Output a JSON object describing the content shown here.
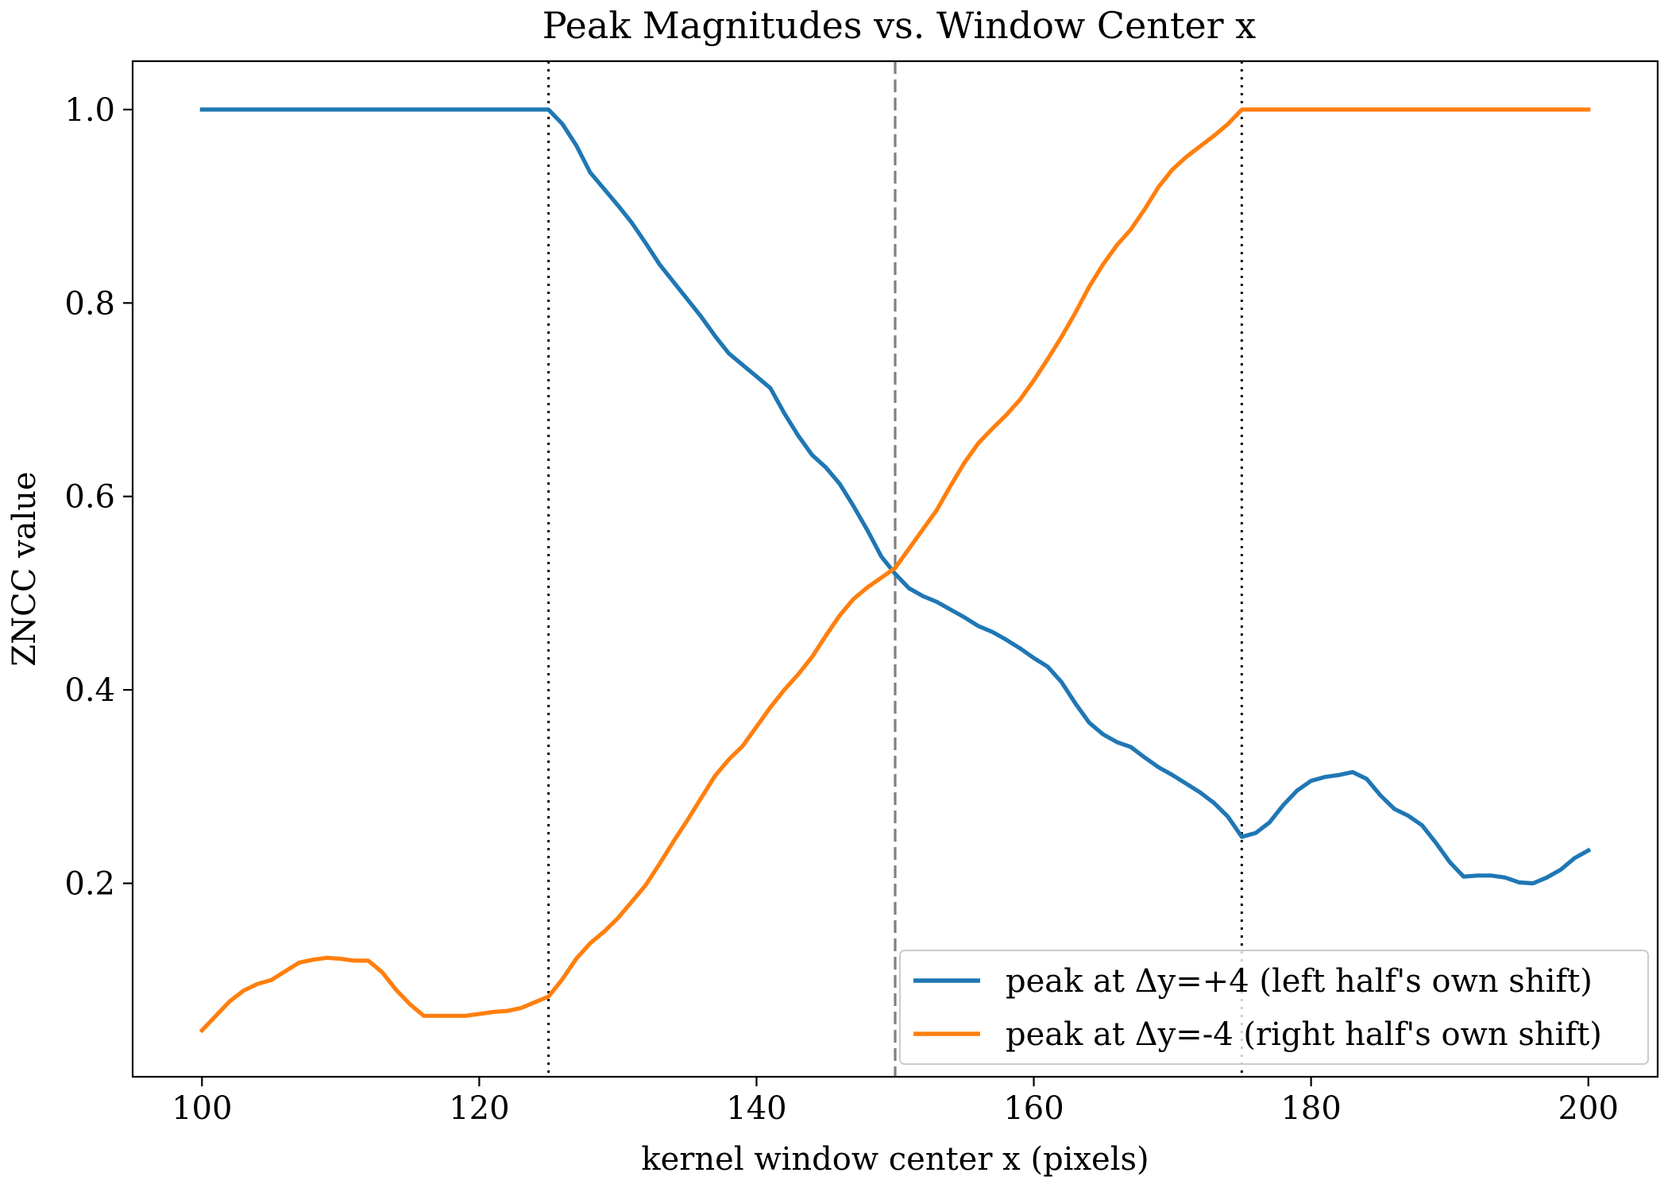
{
  "chart_data": {
    "type": "line",
    "title": "Peak Magnitudes vs. Window Center x",
    "xlabel": "kernel window center x (pixels)",
    "ylabel": "ZNCC value",
    "xlim": [
      95,
      205
    ],
    "ylim": [
      0.0,
      1.05
    ],
    "xticks": [
      100,
      120,
      140,
      160,
      180,
      200
    ],
    "xtick_labels": [
      "100",
      "120",
      "140",
      "160",
      "180",
      "200"
    ],
    "yticks": [
      0.2,
      0.4,
      0.6,
      0.8,
      1.0
    ],
    "ytick_labels": [
      "0.2",
      "0.4",
      "0.6",
      "0.8",
      "1.0"
    ],
    "grid": false,
    "legend_position": "bottom-right",
    "vlines": [
      {
        "x": 125,
        "style": "dotted",
        "color": "#000000"
      },
      {
        "x": 150,
        "style": "dashed",
        "color": "#808080"
      },
      {
        "x": 175,
        "style": "dotted",
        "color": "#000000"
      }
    ],
    "series": [
      {
        "name": "peak at Δy=+4 (left half's own shift)",
        "color": "#1f77b4",
        "x": [
          100,
          101,
          102,
          103,
          104,
          105,
          106,
          107,
          108,
          109,
          110,
          111,
          112,
          113,
          114,
          115,
          116,
          117,
          118,
          119,
          120,
          121,
          122,
          123,
          124,
          125,
          126,
          127,
          128,
          129,
          130,
          131,
          132,
          133,
          134,
          135,
          136,
          137,
          138,
          139,
          140,
          141,
          142,
          143,
          144,
          145,
          146,
          147,
          148,
          149,
          150,
          151,
          152,
          153,
          154,
          155,
          156,
          157,
          158,
          159,
          160,
          161,
          162,
          163,
          164,
          165,
          166,
          167,
          168,
          169,
          170,
          171,
          172,
          173,
          174,
          175,
          176,
          177,
          178,
          179,
          180,
          181,
          182,
          183,
          184,
          185,
          186,
          187,
          188,
          189,
          190,
          191,
          192,
          193,
          194,
          195,
          196,
          197,
          198,
          199,
          200
        ],
        "y": [
          1.0,
          1.0,
          1.0,
          1.0,
          1.0,
          1.0,
          1.0,
          1.0,
          1.0,
          1.0,
          1.0,
          1.0,
          1.0,
          1.0,
          1.0,
          1.0,
          1.0,
          1.0,
          1.0,
          1.0,
          1.0,
          1.0,
          1.0,
          1.0,
          1.0,
          1.0,
          0.985,
          0.963,
          0.935,
          0.918,
          0.901,
          0.883,
          0.862,
          0.84,
          0.822,
          0.804,
          0.786,
          0.766,
          0.748,
          0.736,
          0.724,
          0.712,
          0.686,
          0.663,
          0.643,
          0.63,
          0.613,
          0.59,
          0.565,
          0.538,
          0.52,
          0.505,
          0.497,
          0.491,
          0.483,
          0.475,
          0.466,
          0.46,
          0.452,
          0.443,
          0.433,
          0.424,
          0.408,
          0.386,
          0.366,
          0.354,
          0.346,
          0.341,
          0.33,
          0.32,
          0.312,
          0.303,
          0.294,
          0.283,
          0.269,
          0.248,
          0.252,
          0.263,
          0.281,
          0.296,
          0.306,
          0.31,
          0.312,
          0.315,
          0.308,
          0.291,
          0.277,
          0.27,
          0.26,
          0.242,
          0.222,
          0.207,
          0.208,
          0.208,
          0.206,
          0.201,
          0.2,
          0.206,
          0.214,
          0.226,
          0.234
        ]
      },
      {
        "name": "peak at Δy=-4 (right half's own shift)",
        "color": "#ff7f0e",
        "x": [
          100,
          101,
          102,
          103,
          104,
          105,
          106,
          107,
          108,
          109,
          110,
          111,
          112,
          113,
          114,
          115,
          116,
          117,
          118,
          119,
          120,
          121,
          122,
          123,
          124,
          125,
          126,
          127,
          128,
          129,
          130,
          131,
          132,
          133,
          134,
          135,
          136,
          137,
          138,
          139,
          140,
          141,
          142,
          143,
          144,
          145,
          146,
          147,
          148,
          149,
          150,
          151,
          152,
          153,
          154,
          155,
          156,
          157,
          158,
          159,
          160,
          161,
          162,
          163,
          164,
          165,
          166,
          167,
          168,
          169,
          170,
          171,
          172,
          173,
          174,
          175,
          176,
          177,
          178,
          179,
          180,
          181,
          182,
          183,
          184,
          185,
          186,
          187,
          188,
          189,
          190,
          191,
          192,
          193,
          194,
          195,
          196,
          197,
          198,
          199,
          200
        ],
        "y": [
          0.048,
          0.063,
          0.078,
          0.089,
          0.096,
          0.1,
          0.109,
          0.118,
          0.121,
          0.123,
          0.122,
          0.12,
          0.12,
          0.108,
          0.09,
          0.075,
          0.063,
          0.063,
          0.063,
          0.063,
          0.065,
          0.067,
          0.068,
          0.071,
          0.077,
          0.083,
          0.101,
          0.122,
          0.138,
          0.15,
          0.164,
          0.181,
          0.198,
          0.22,
          0.243,
          0.265,
          0.288,
          0.311,
          0.328,
          0.342,
          0.362,
          0.382,
          0.4,
          0.416,
          0.434,
          0.456,
          0.477,
          0.494,
          0.506,
          0.516,
          0.526,
          0.546,
          0.566,
          0.586,
          0.611,
          0.635,
          0.655,
          0.67,
          0.684,
          0.7,
          0.72,
          0.742,
          0.765,
          0.79,
          0.817,
          0.84,
          0.86,
          0.876,
          0.897,
          0.92,
          0.938,
          0.951,
          0.962,
          0.973,
          0.985,
          1.0,
          1.0,
          1.0,
          1.0,
          1.0,
          1.0,
          1.0,
          1.0,
          1.0,
          1.0,
          1.0,
          1.0,
          1.0,
          1.0,
          1.0,
          1.0,
          1.0,
          1.0,
          1.0,
          1.0,
          1.0,
          1.0,
          1.0,
          1.0,
          1.0,
          1.0
        ]
      }
    ]
  }
}
